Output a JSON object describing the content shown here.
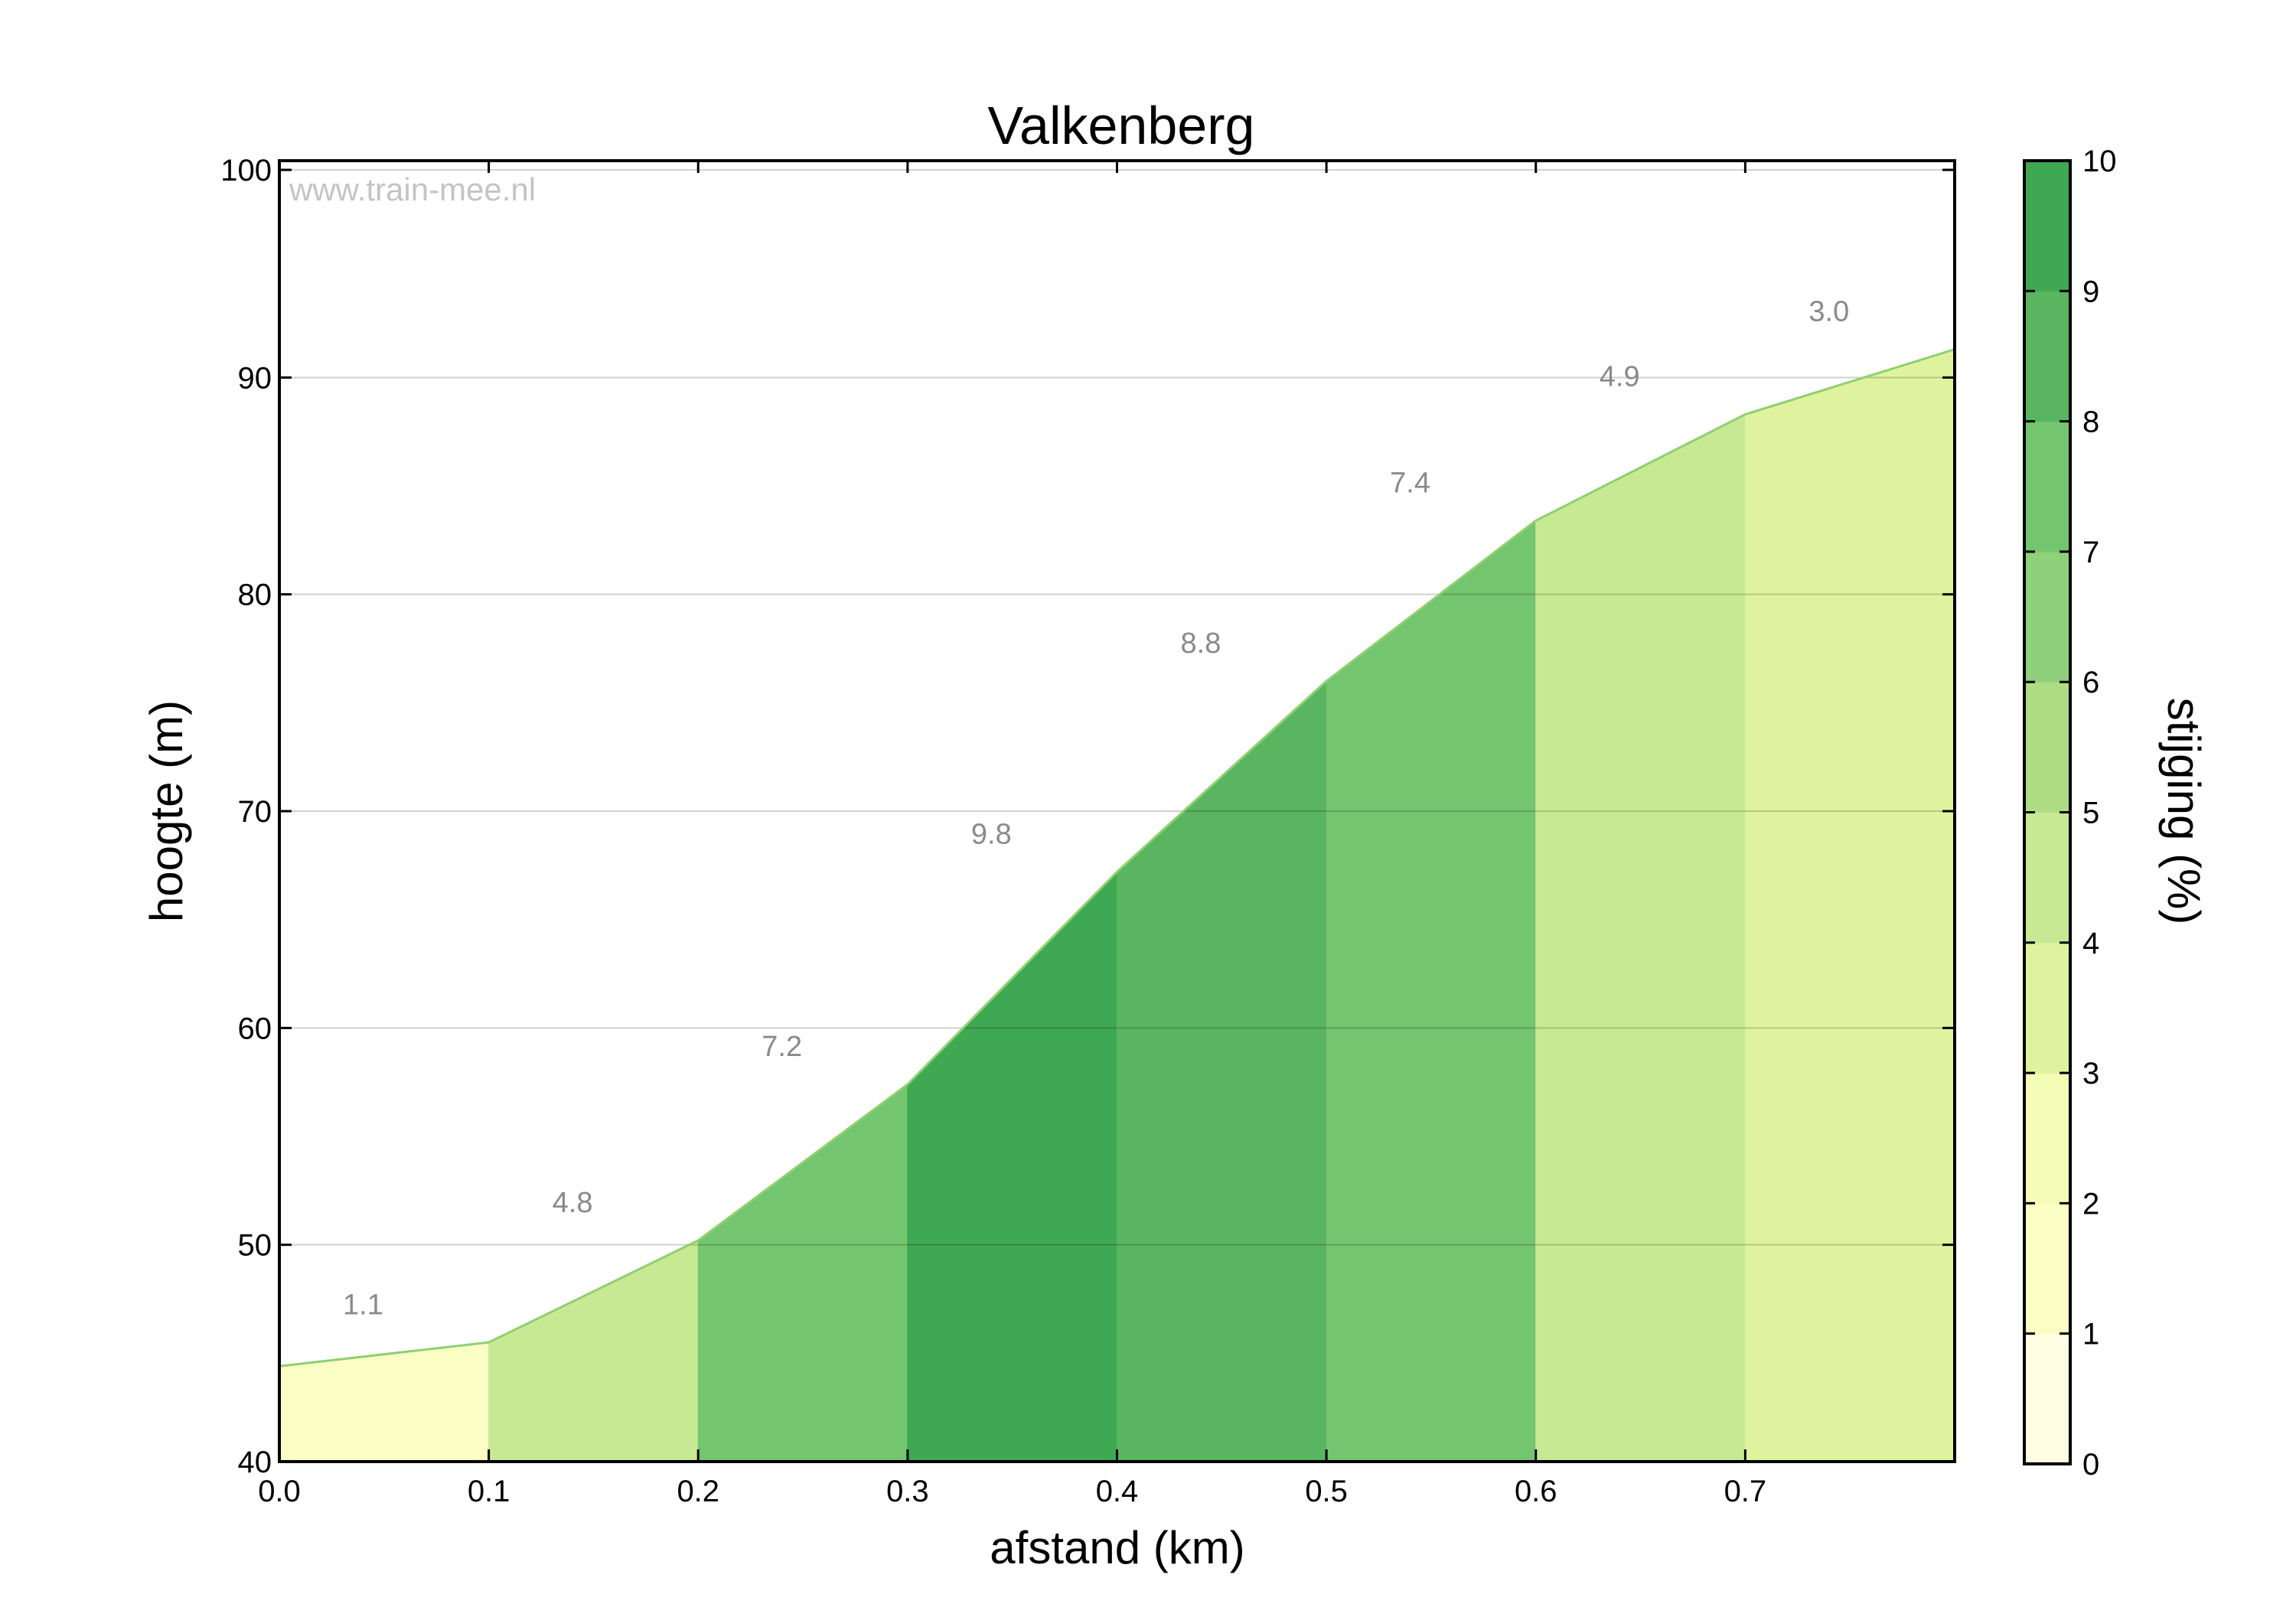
{
  "watermark": "www.train-mee.nl",
  "chart_data": {
    "type": "area",
    "title": "Valkenberg",
    "xlabel": "afstand (km)",
    "ylabel": "hoogte (m)",
    "xlim": [
      0,
      0.8
    ],
    "ylim": [
      40,
      100
    ],
    "x_ticks": [
      "0.0",
      "0.1",
      "0.2",
      "0.3",
      "0.4",
      "0.5",
      "0.6",
      "0.7"
    ],
    "y_ticks": [
      "40",
      "50",
      "60",
      "70",
      "80",
      "90",
      "100"
    ],
    "grid": "horizontal",
    "points": [
      {
        "x": 0.0,
        "y": 44.4
      },
      {
        "x": 0.1,
        "y": 45.5
      },
      {
        "x": 0.2,
        "y": 50.2
      },
      {
        "x": 0.3,
        "y": 57.4
      },
      {
        "x": 0.4,
        "y": 67.2
      },
      {
        "x": 0.5,
        "y": 76.0
      },
      {
        "x": 0.6,
        "y": 83.4
      },
      {
        "x": 0.7,
        "y": 88.3
      },
      {
        "x": 0.8,
        "y": 91.3
      }
    ],
    "segments": [
      {
        "label": "1.1",
        "gradient": 1.1
      },
      {
        "label": "4.8",
        "gradient": 4.8
      },
      {
        "label": "7.2",
        "gradient": 7.2
      },
      {
        "label": "9.8",
        "gradient": 9.8
      },
      {
        "label": "8.8",
        "gradient": 8.8
      },
      {
        "label": "7.4",
        "gradient": 7.4
      },
      {
        "label": "4.9",
        "gradient": 4.9
      },
      {
        "label": "3.0",
        "gradient": 3.0
      }
    ],
    "colorbar": {
      "label": "stijging (%)",
      "range": [
        0,
        10
      ],
      "ticks": [
        "0",
        "1",
        "2",
        "3",
        "4",
        "5",
        "6",
        "7",
        "8",
        "9",
        "10"
      ],
      "colors": [
        "#fffde2",
        "#fbfec4",
        "#f2fcb4",
        "#dff39e",
        "#c8e993",
        "#afdd86",
        "#8fd07a",
        "#74c56f",
        "#59b55f",
        "#3fa853"
      ]
    },
    "line_color": "#8fcf71"
  }
}
